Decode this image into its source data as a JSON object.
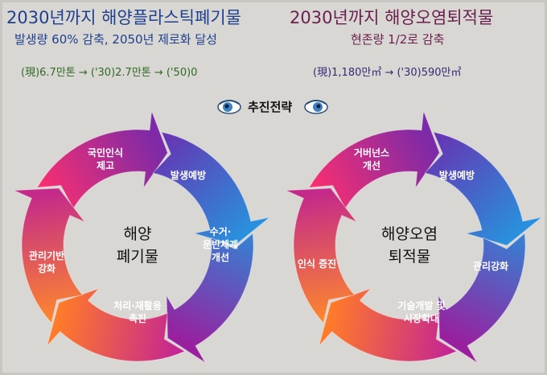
{
  "left": {
    "title": "2030년까지 해양플라스틱폐기물",
    "subtitle": "발생량 60% 감축, 2050년 제로화 달성",
    "stat": "(現)6.7만톤 → ('30)2.7만톤 → ('50)0",
    "center": [
      "해양",
      "폐기물"
    ],
    "segments": [
      {
        "label": [
          "국민인식",
          "제고"
        ]
      },
      {
        "label": [
          "발생예방"
        ]
      },
      {
        "label": [
          "수거·",
          "운반체계",
          "개선"
        ]
      },
      {
        "label": [
          "처리·재활용",
          "촉진"
        ]
      },
      {
        "label": [
          "관리기반",
          "강화"
        ]
      }
    ]
  },
  "right": {
    "title": "2030년까지 해양오염퇴적물",
    "subtitle": "현존량 1/2로 감축",
    "stat": "(現)1,180만㎥ → ('30)590만㎥",
    "center": [
      "해양오염",
      "퇴적물"
    ],
    "segments": [
      {
        "label": [
          "거버넌스",
          "개선"
        ]
      },
      {
        "label": [
          "발생예방"
        ]
      },
      {
        "label": [
          "관리강화"
        ]
      },
      {
        "label": [
          "기술개발 및",
          "시장확대"
        ]
      },
      {
        "label": [
          "인식 증진"
        ]
      }
    ]
  },
  "strategy_label": "추진전략",
  "colors": {
    "left_title": "#1f3f8f",
    "right_title": "#6b1f4f",
    "left_stat": "#2f6a23",
    "right_stat": "#3b2776",
    "background": "#d8d7d3"
  }
}
